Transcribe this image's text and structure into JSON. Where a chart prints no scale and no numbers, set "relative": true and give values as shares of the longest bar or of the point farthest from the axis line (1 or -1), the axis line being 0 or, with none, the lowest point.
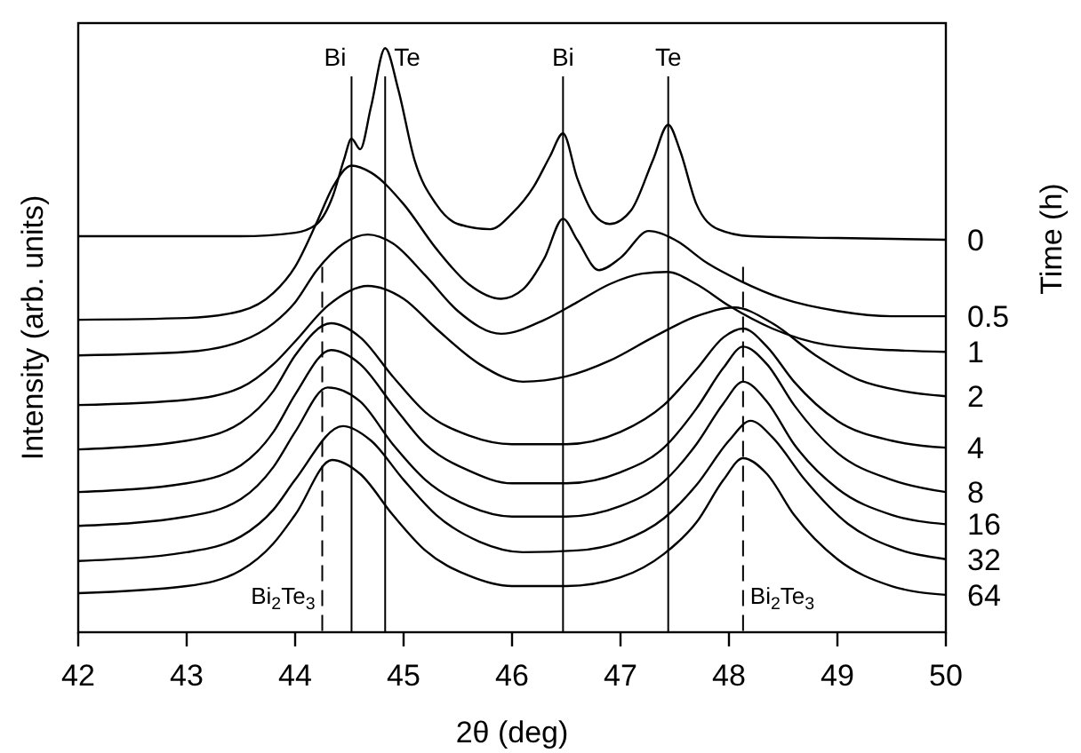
{
  "chart_data": {
    "type": "line",
    "relative": true,
    "xlabel": "2θ (deg)",
    "ylabel": "Intensity (arb. units)",
    "legend_title": "Time (h)",
    "xlim": [
      42,
      50
    ],
    "xticks": [
      42,
      43,
      44,
      45,
      46,
      47,
      48,
      49,
      50
    ],
    "series": [
      {
        "name": "0",
        "color": "#000000",
        "x": [
          42,
          43,
          43.5,
          44.0,
          44.2,
          44.35,
          44.45,
          44.52,
          44.6,
          44.7,
          44.83,
          44.95,
          45.1,
          45.3,
          45.5,
          45.8,
          46.0,
          46.2,
          46.35,
          46.47,
          46.6,
          46.75,
          46.9,
          47.1,
          47.3,
          47.44,
          47.55,
          47.7,
          47.9,
          48.2,
          49,
          50
        ],
        "values": [
          0.678,
          0.678,
          0.678,
          0.684,
          0.699,
          0.748,
          0.809,
          0.845,
          0.827,
          0.9,
          1.0,
          0.93,
          0.809,
          0.733,
          0.699,
          0.69,
          0.717,
          0.763,
          0.815,
          0.854,
          0.778,
          0.717,
          0.699,
          0.723,
          0.809,
          0.869,
          0.824,
          0.733,
          0.69,
          0.678,
          0.675,
          0.672
        ]
      },
      {
        "name": "0.5",
        "color": "#000000",
        "x": [
          42,
          43,
          43.5,
          43.8,
          44.0,
          44.2,
          44.35,
          44.52,
          44.7,
          45.0,
          45.3,
          45.6,
          45.9,
          46.1,
          46.3,
          46.47,
          46.6,
          46.8,
          47.0,
          47.26,
          47.5,
          47.8,
          48.1,
          48.5,
          49.0,
          49.5,
          50
        ],
        "values": [
          0.535,
          0.538,
          0.55,
          0.581,
          0.626,
          0.702,
          0.763,
          0.799,
          0.787,
          0.733,
          0.657,
          0.596,
          0.571,
          0.587,
          0.641,
          0.708,
          0.672,
          0.62,
          0.641,
          0.687,
          0.672,
          0.632,
          0.602,
          0.571,
          0.55,
          0.541,
          0.541
        ]
      },
      {
        "name": "1",
        "color": "#000000",
        "x": [
          42,
          43,
          43.5,
          43.8,
          44.0,
          44.2,
          44.45,
          44.67,
          44.9,
          45.2,
          45.5,
          45.9,
          46.3,
          46.6,
          46.9,
          47.2,
          47.43,
          47.7,
          48.0,
          48.4,
          48.9,
          49.5,
          50
        ],
        "values": [
          0.474,
          0.48,
          0.498,
          0.529,
          0.565,
          0.62,
          0.666,
          0.681,
          0.666,
          0.611,
          0.55,
          0.511,
          0.535,
          0.565,
          0.596,
          0.614,
          0.617,
          0.596,
          0.559,
          0.52,
          0.492,
          0.483,
          0.48
        ]
      },
      {
        "name": "2",
        "color": "#000000",
        "x": [
          42,
          43,
          43.5,
          43.8,
          44.0,
          44.3,
          44.67,
          45.0,
          45.3,
          45.7,
          46.1,
          46.5,
          46.9,
          47.3,
          47.7,
          48.05,
          48.4,
          48.8,
          49.2,
          49.6,
          50
        ],
        "values": [
          0.389,
          0.398,
          0.419,
          0.459,
          0.498,
          0.559,
          0.593,
          0.571,
          0.52,
          0.459,
          0.429,
          0.438,
          0.465,
          0.505,
          0.541,
          0.556,
          0.529,
          0.474,
          0.432,
          0.413,
          0.404
        ]
      },
      {
        "name": "4",
        "color": "#000000",
        "x": [
          42,
          43,
          43.5,
          43.8,
          44.0,
          44.33,
          44.6,
          44.9,
          45.2,
          45.6,
          46.0,
          46.5,
          47.0,
          47.4,
          47.7,
          47.95,
          48.13,
          48.35,
          48.6,
          49.0,
          49.5,
          50
        ],
        "values": [
          0.313,
          0.328,
          0.359,
          0.413,
          0.474,
          0.529,
          0.505,
          0.438,
          0.377,
          0.337,
          0.322,
          0.322,
          0.343,
          0.389,
          0.45,
          0.505,
          0.52,
          0.489,
          0.429,
          0.362,
          0.328,
          0.316
        ]
      },
      {
        "name": "8",
        "color": "#000000",
        "x": [
          42,
          43,
          43.5,
          43.8,
          44.0,
          44.33,
          44.6,
          44.9,
          45.2,
          45.6,
          46.0,
          46.5,
          47.0,
          47.4,
          47.7,
          47.95,
          48.13,
          48.35,
          48.6,
          49.0,
          49.5,
          50
        ],
        "values": [
          0.24,
          0.255,
          0.286,
          0.343,
          0.407,
          0.483,
          0.459,
          0.389,
          0.322,
          0.277,
          0.255,
          0.255,
          0.274,
          0.316,
          0.383,
          0.453,
          0.489,
          0.459,
          0.389,
          0.307,
          0.261,
          0.24
        ]
      },
      {
        "name": "16",
        "color": "#000000",
        "x": [
          42,
          43,
          43.5,
          43.8,
          44.0,
          44.3,
          44.6,
          44.9,
          45.2,
          45.6,
          46.0,
          46.5,
          47.0,
          47.4,
          47.7,
          47.95,
          48.13,
          48.35,
          48.6,
          49.0,
          49.5,
          50
        ],
        "values": [
          0.182,
          0.198,
          0.228,
          0.283,
          0.343,
          0.419,
          0.395,
          0.322,
          0.261,
          0.216,
          0.198,
          0.198,
          0.216,
          0.258,
          0.322,
          0.392,
          0.429,
          0.395,
          0.322,
          0.246,
          0.201,
          0.185
        ]
      },
      {
        "name": "32",
        "color": "#000000",
        "x": [
          42,
          43,
          43.5,
          43.8,
          44.0,
          44.44,
          44.7,
          45.0,
          45.3,
          45.7,
          46.1,
          46.6,
          47.0,
          47.4,
          47.7,
          48.0,
          48.2,
          48.4,
          48.7,
          49.1,
          49.5,
          50
        ],
        "values": [
          0.122,
          0.137,
          0.164,
          0.21,
          0.261,
          0.353,
          0.328,
          0.261,
          0.201,
          0.155,
          0.137,
          0.14,
          0.155,
          0.195,
          0.252,
          0.328,
          0.362,
          0.334,
          0.261,
          0.185,
          0.146,
          0.125
        ]
      },
      {
        "name": "64",
        "color": "#000000",
        "x": [
          42,
          43,
          43.5,
          43.8,
          44.0,
          44.34,
          44.6,
          44.9,
          45.2,
          45.6,
          46.0,
          46.5,
          47.0,
          47.4,
          47.7,
          47.95,
          48.13,
          48.35,
          48.6,
          49.0,
          49.5,
          50
        ],
        "values": [
          0.067,
          0.079,
          0.106,
          0.152,
          0.201,
          0.295,
          0.271,
          0.201,
          0.14,
          0.097,
          0.079,
          0.079,
          0.094,
          0.134,
          0.188,
          0.261,
          0.298,
          0.271,
          0.201,
          0.125,
          0.079,
          0.064
        ]
      }
    ],
    "ref_lines": [
      {
        "axis": "x",
        "value": 44.25,
        "label": "Bi$_{2}$Te$_{3}$",
        "line_style": "dashed"
      },
      {
        "axis": "x",
        "value": 44.52,
        "label": "Bi",
        "line_style": "solid"
      },
      {
        "axis": "x",
        "value": 44.83,
        "label": "Te",
        "line_style": "solid"
      },
      {
        "axis": "x",
        "value": 46.47,
        "label": "Bi",
        "line_style": "solid"
      },
      {
        "axis": "x",
        "value": 47.44,
        "label": "Te",
        "line_style": "solid"
      },
      {
        "axis": "x",
        "value": 48.13,
        "label": "Bi$_{2}$Te$_{3}$",
        "line_style": "dashed"
      }
    ]
  }
}
